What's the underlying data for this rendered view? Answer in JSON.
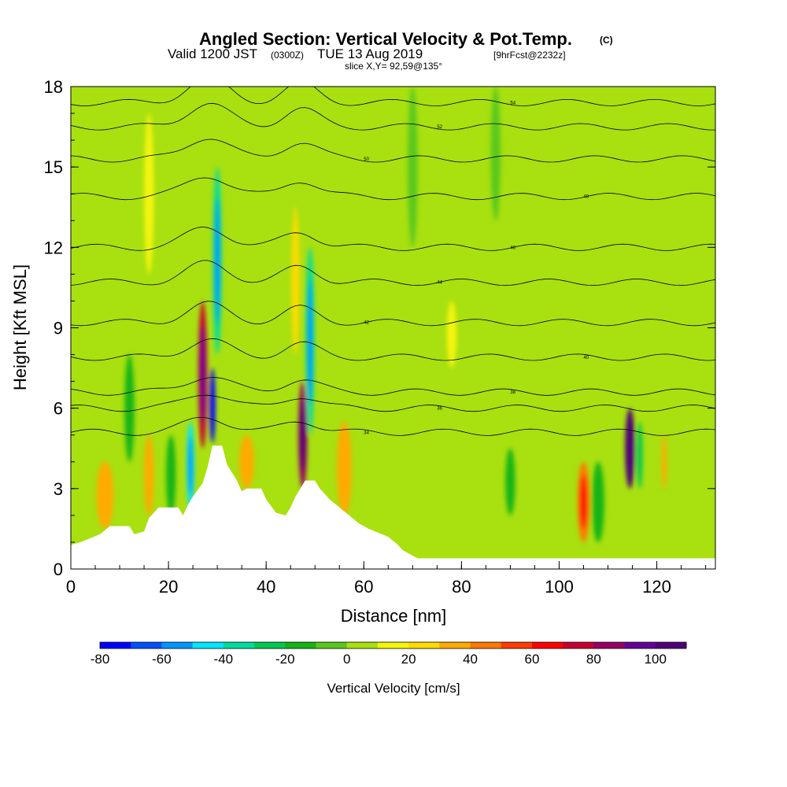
{
  "title": {
    "main": "Angled Section: Vertical Velocity & Pot.Temp.",
    "main_suffix": "(C)",
    "valid_prefix": "Valid 1200 JST",
    "valid_zulu": "(0300Z)",
    "valid_date": "TUE 13 Aug 2019",
    "valid_fcst": "[9hrFcst@2232z]",
    "slice": "slice X,Y= 92,59@135°"
  },
  "chart_data": {
    "type": "heatmap",
    "xlabel": "Distance [nm]",
    "ylabel": "Height [Kft MSL]",
    "xlim": [
      0,
      132
    ],
    "ylim": [
      0,
      18
    ],
    "xticks": [
      0,
      20,
      40,
      60,
      80,
      100,
      120
    ],
    "yticks": [
      0,
      3,
      6,
      9,
      12,
      15,
      18
    ],
    "background_color": "#a8e010",
    "terrain": [
      [
        0,
        0.9
      ],
      [
        2,
        1.0
      ],
      [
        6,
        1.3
      ],
      [
        8,
        1.6
      ],
      [
        12,
        1.6
      ],
      [
        13,
        1.3
      ],
      [
        15,
        1.4
      ],
      [
        16,
        1.9
      ],
      [
        18,
        2.3
      ],
      [
        22,
        2.3
      ],
      [
        23,
        2.0
      ],
      [
        24,
        2.4
      ],
      [
        25,
        2.7
      ],
      [
        27,
        3.2
      ],
      [
        28,
        3.8
      ],
      [
        29,
        4.6
      ],
      [
        31,
        4.6
      ],
      [
        32,
        3.9
      ],
      [
        34,
        3.3
      ],
      [
        35,
        2.9
      ],
      [
        36,
        3.0
      ],
      [
        39,
        3.0
      ],
      [
        40,
        2.6
      ],
      [
        42,
        2.1
      ],
      [
        44,
        2.0
      ],
      [
        45,
        2.3
      ],
      [
        46,
        2.7
      ],
      [
        47,
        3.0
      ],
      [
        48,
        3.3
      ],
      [
        50,
        3.3
      ],
      [
        51,
        3.0
      ],
      [
        53,
        2.6
      ],
      [
        55,
        2.3
      ],
      [
        57,
        2.0
      ],
      [
        59,
        1.7
      ],
      [
        61,
        1.5
      ],
      [
        65,
        1.2
      ],
      [
        67,
        0.9
      ],
      [
        68,
        0.7
      ],
      [
        71,
        0.4
      ],
      [
        132,
        0.4
      ]
    ],
    "velocity_cells": [
      {
        "x": 27,
        "y0": 4.5,
        "y1": 10.0,
        "w": 1.8,
        "value": 70
      },
      {
        "x": 29,
        "y0": 4.7,
        "y1": 7.5,
        "w": 1.2,
        "value": -75
      },
      {
        "x": 47.5,
        "y0": 3.0,
        "y1": 7.0,
        "w": 1.8,
        "value": 85
      },
      {
        "x": 114.5,
        "y0": 3.0,
        "y1": 6.0,
        "w": 2.0,
        "value": 100
      },
      {
        "x": 24.5,
        "y0": 2.2,
        "y1": 5.5,
        "w": 1.6,
        "value": -45
      },
      {
        "x": 30,
        "y0": 8.0,
        "y1": 15.0,
        "w": 1.8,
        "value": -40
      },
      {
        "x": 49,
        "y0": 5.0,
        "y1": 12.0,
        "w": 1.8,
        "value": -40
      },
      {
        "x": 46,
        "y0": 8.0,
        "y1": 13.5,
        "w": 1.6,
        "value": 25
      },
      {
        "x": 16,
        "y0": 2.0,
        "y1": 5.0,
        "w": 2.0,
        "value": 30
      },
      {
        "x": 56,
        "y0": 2.0,
        "y1": 5.5,
        "w": 3.0,
        "value": 35
      },
      {
        "x": 105,
        "y0": 1.0,
        "y1": 4.0,
        "w": 2.5,
        "value": 40
      },
      {
        "x": 7,
        "y0": 1.5,
        "y1": 4.0,
        "w": 3.5,
        "value": 30
      },
      {
        "x": 36,
        "y0": 3.0,
        "y1": 5.0,
        "w": 3.0,
        "value": 30
      },
      {
        "x": 20.5,
        "y0": 2.0,
        "y1": 5.0,
        "w": 2.0,
        "value": -20
      },
      {
        "x": 12,
        "y0": 4.0,
        "y1": 8.0,
        "w": 2.0,
        "value": -15
      },
      {
        "x": 116.5,
        "y0": 3.0,
        "y1": 5.5,
        "w": 1.2,
        "value": -30
      },
      {
        "x": 90,
        "y0": 2.0,
        "y1": 4.5,
        "w": 2.0,
        "value": -20
      },
      {
        "x": 108,
        "y0": 1.0,
        "y1": 4.0,
        "w": 2.5,
        "value": -15
      },
      {
        "x": 78,
        "y0": 7.5,
        "y1": 10.0,
        "w": 2.0,
        "value": 15
      },
      {
        "x": 16,
        "y0": 11.0,
        "y1": 17.0,
        "w": 2.0,
        "value": 15
      },
      {
        "x": 87,
        "y0": 13.0,
        "y1": 18.0,
        "w": 2.0,
        "value": -10
      },
      {
        "x": 70,
        "y0": 12.0,
        "y1": 18.0,
        "w": 2.0,
        "value": -10
      },
      {
        "x": 121.5,
        "y0": 3.0,
        "y1": 5.0,
        "w": 1.0,
        "value": 30
      }
    ],
    "theta_levels": [
      {
        "value": 34,
        "height": 5.1
      },
      {
        "value": 36,
        "height": 6.0
      },
      {
        "value": 38,
        "height": 6.6
      },
      {
        "value": 40,
        "height": 7.9
      },
      {
        "value": 42,
        "height": 9.2
      },
      {
        "value": 44,
        "height": 10.7
      },
      {
        "value": 46,
        "height": 12.0
      },
      {
        "value": 48,
        "height": 13.9
      },
      {
        "value": 50,
        "height": 15.3
      },
      {
        "value": 52,
        "height": 16.5
      },
      {
        "value": 54,
        "height": 17.4
      }
    ],
    "colorbar": {
      "label": "Vertical Velocity [cm/s]",
      "min": -80,
      "max": 110,
      "tick_labels": [
        "-80",
        "-60",
        "-40",
        "-20",
        "0",
        "20",
        "40",
        "60",
        "80",
        "100"
      ],
      "colors": [
        "#0000ff",
        "#0050ff",
        "#0096ff",
        "#00e6ff",
        "#00dca0",
        "#00c850",
        "#14b414",
        "#5ac81e",
        "#a8e010",
        "#f5f50a",
        "#ffdc00",
        "#ffaa00",
        "#ff7800",
        "#ff3c00",
        "#ff0000",
        "#c80032",
        "#960064",
        "#640096",
        "#500078"
      ]
    }
  }
}
